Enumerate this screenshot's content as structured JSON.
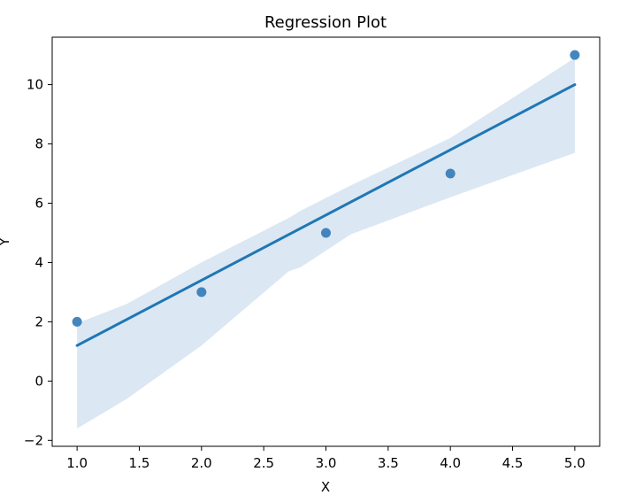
{
  "chart_data": {
    "type": "scatter",
    "title": "Regression Plot",
    "xlabel": "X",
    "ylabel": "Y",
    "xlim": [
      0.8,
      5.2
    ],
    "ylim": [
      -2.2,
      11.6
    ],
    "xticks": [
      "1.0",
      "1.5",
      "2.0",
      "2.5",
      "3.0",
      "3.5",
      "4.0",
      "4.5",
      "5.0"
    ],
    "yticks": [
      "−2",
      "0",
      "2",
      "4",
      "6",
      "8",
      "10"
    ],
    "grid": false,
    "legend": "none",
    "points": {
      "x": [
        1,
        2,
        3,
        4,
        5
      ],
      "y": [
        2,
        3,
        5,
        7,
        11
      ]
    },
    "regression_line": {
      "x": [
        1.0,
        5.0
      ],
      "y": [
        1.2,
        10.0
      ]
    },
    "confidence_band": {
      "x": [
        1.0,
        1.4,
        2.0,
        2.7,
        2.8,
        3.2,
        4.0,
        5.0
      ],
      "lower": [
        -1.6,
        -0.6,
        1.2,
        3.7,
        3.85,
        4.95,
        6.2,
        7.7
      ],
      "upper": [
        1.95,
        2.6,
        4.0,
        5.5,
        5.75,
        6.6,
        8.2,
        10.9
      ]
    },
    "colors": {
      "points": "#3a7fba",
      "line": "#1f77b4",
      "band": "#dbe7f3"
    }
  }
}
